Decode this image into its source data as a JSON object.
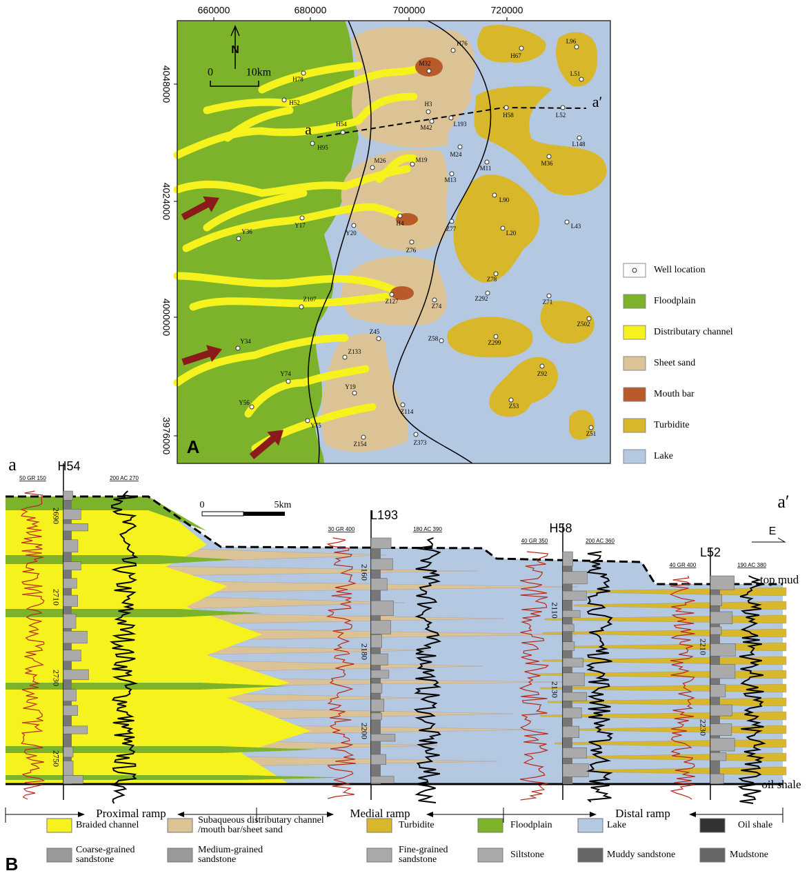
{
  "map": {
    "panel_label": "A",
    "x_ticks": [
      660000,
      680000,
      700000,
      720000
    ],
    "y_ticks": [
      4048000,
      4024000,
      4000000,
      3976000
    ],
    "north": "N",
    "scale_start": "0",
    "scale_end": "10km",
    "section_start": "a",
    "section_end": "a′",
    "wells": [
      "H76",
      "H67",
      "L96",
      "M32",
      "L51",
      "H78",
      "H52",
      "H3",
      "L193",
      "M42",
      "H58",
      "L52",
      "H54",
      "H95",
      "L148",
      "M24",
      "M19",
      "M26",
      "M11",
      "M36",
      "M13",
      "L90",
      "L43",
      "Y17",
      "Y20",
      "H4",
      "Z77",
      "L20",
      "Y36",
      "Z76",
      "Z78",
      "Z292",
      "Z71",
      "Z107",
      "Z127",
      "Z74",
      "Z502",
      "Z45",
      "Z58",
      "Z299",
      "Y34",
      "Z133",
      "Z92",
      "Y74",
      "Y19",
      "Z114",
      "Z53",
      "Y56",
      "Y75",
      "Z51",
      "Z154",
      "Z373"
    ],
    "legend": [
      "Well location",
      "Floodplain",
      "Distributary channel",
      "Sheet sand",
      "Mouth bar",
      "Turbidite",
      "Lake"
    ]
  },
  "section": {
    "panel_label": "B",
    "start": "a",
    "end": "a′",
    "direction": "E",
    "scale_start": "0",
    "scale_end": "5km",
    "top_label": "top mud",
    "bottom_label": "oil shale",
    "wells": [
      {
        "name": "H54",
        "gr_scale": "50 GR 150",
        "ac_scale": "200 AC 270",
        "depths": [
          2690,
          2710,
          2730,
          2750
        ]
      },
      {
        "name": "L193",
        "gr_scale": "30 GR 400",
        "ac_scale": "180 AC 390",
        "depths": [
          2160,
          2180,
          2200
        ]
      },
      {
        "name": "H58",
        "gr_scale": "40 GR 350",
        "ac_scale": "200 AC 360",
        "depths": [
          2110,
          2130
        ]
      },
      {
        "name": "L52",
        "gr_scale": "40 GR 400",
        "ac_scale": "190 AC 380",
        "depths": [
          2210,
          2230
        ]
      }
    ],
    "zones": [
      "Proximal ramp",
      "Medial ramp",
      "Distal ramp"
    ],
    "legend": [
      [
        "Braided channel"
      ],
      [
        "Subaqueous distributary channel",
        "/mouth bar/sheet sand"
      ],
      [
        "Turbidite"
      ],
      [
        "Floodplain"
      ],
      [
        "Lake"
      ],
      [
        "Oil shale"
      ],
      [
        "Coarse-grained",
        "sandstone"
      ],
      [
        "Medium-grained",
        "sandstone"
      ],
      [
        "Fine-grained",
        "sandstone"
      ],
      [
        "Siltstone"
      ],
      [
        "Muddy sandstone"
      ],
      [
        "Mudstone"
      ]
    ]
  }
}
